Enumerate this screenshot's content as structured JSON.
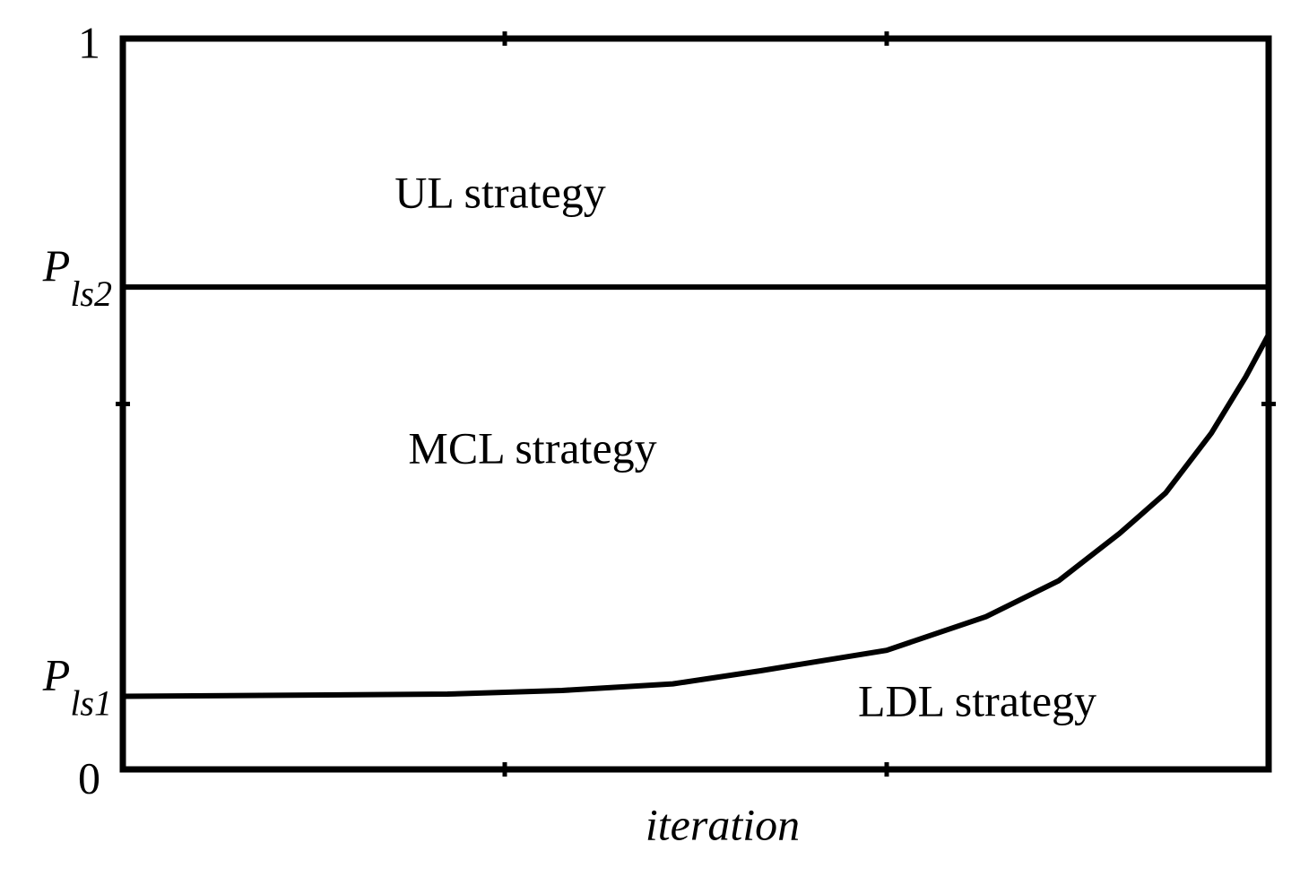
{
  "chart_data": {
    "type": "line",
    "x_label": "iteration",
    "x": [
      0,
      0.85,
      1.15,
      1.44,
      1.67,
      2.0,
      2.26,
      2.45,
      2.61,
      2.73,
      2.85,
      2.94,
      3.0
    ],
    "values": [
      0.1,
      0.103,
      0.108,
      0.117,
      0.135,
      0.163,
      0.209,
      0.258,
      0.323,
      0.378,
      0.46,
      0.537,
      0.595
    ],
    "color": "#000000",
    "xlim": [
      0,
      3
    ],
    "unlabeled_xticks": [
      1,
      2
    ],
    "ylim": [
      0,
      1
    ],
    "yticks": [
      0,
      {
        "value": 0.1,
        "label": "P",
        "subscript": "ls1"
      },
      {
        "value": 0.66,
        "label": "P",
        "subscript": "ls2"
      },
      1
    ],
    "unlabeled_yticks": [
      0.5
    ],
    "threshold_tick": 2,
    "annotations": [
      "UL strategy",
      "MCL strategy",
      "LDL strategy"
    ],
    "grid": false
  }
}
